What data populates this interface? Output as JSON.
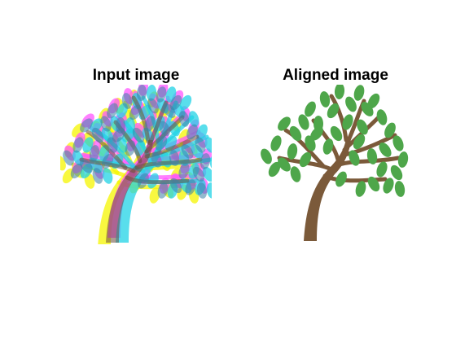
{
  "panels": {
    "left": {
      "title": "Input image",
      "description": "tree-image-misaligned-rgb-channels",
      "channel_colors": [
        "#f5f500",
        "#ff55ff",
        "#22d3e6"
      ]
    },
    "right": {
      "title": "Aligned image",
      "description": "tree-image-aligned",
      "leaf_color": "#4ea64a",
      "trunk_color": "#7b5a3a"
    }
  },
  "background_color": "#ffffff"
}
